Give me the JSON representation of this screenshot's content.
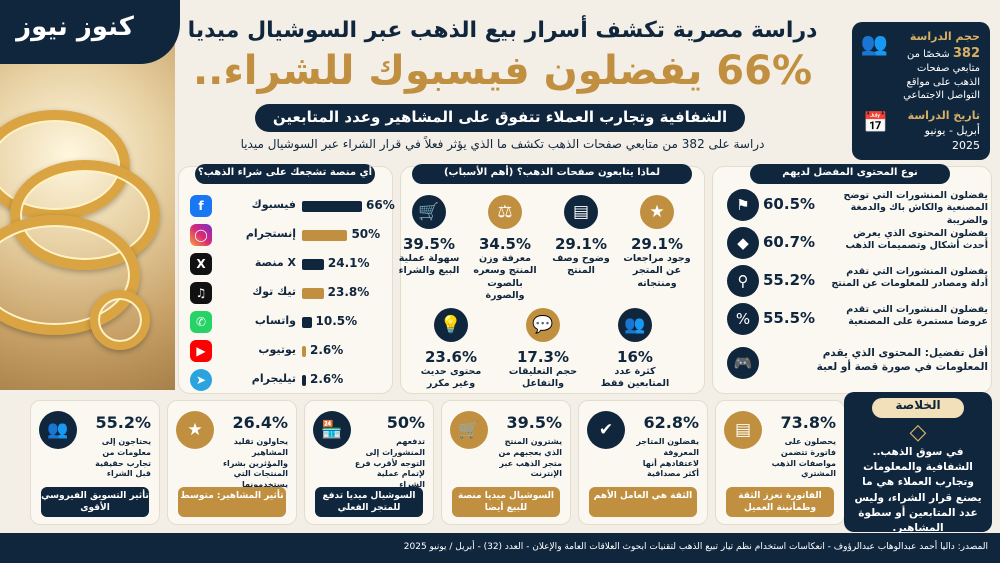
{
  "brand": {
    "logo": "كنوز نيوز"
  },
  "header": {
    "title": "دراسة مصرية تكشف أسرار بيع الذهب عبر السوشيال ميديا",
    "headline": "66% يفضلون فيسبوك للشراء..",
    "subtitle": "الشفافية وتجارب العملاء تتفوق على المشاهير وعدد المتابعين",
    "description": "دراسة على 382 من متابعي صفحات الذهب تكشف ما الذي يؤثر فعلاً في قرار الشراء عبر السوشيال ميديا"
  },
  "study": {
    "size_label": "حجم الدراسة",
    "size_num": "382",
    "size_text": "شخصًا من متابعي صفحات الذهب على مواقع التواصل الاجتماعي",
    "date_label": "تاريخ الدراسة",
    "date_value": "أبريل - يونيو 2025"
  },
  "platforms": {
    "title": "أي منصة تشجعك على شراء الذهب؟",
    "items": [
      {
        "name": "فيسبوك",
        "value": "66%",
        "pct": 66,
        "color": "#10263d",
        "icon": "facebook-icon"
      },
      {
        "name": "إنستجرام",
        "value": "50%",
        "pct": 50,
        "color": "#c09040",
        "icon": "instagram-icon"
      },
      {
        "name": "منصة X",
        "value": "24.1%",
        "pct": 24.1,
        "color": "#10263d",
        "icon": "x-icon"
      },
      {
        "name": "تيك توك",
        "value": "23.8%",
        "pct": 23.8,
        "color": "#c09040",
        "icon": "tiktok-icon"
      },
      {
        "name": "واتساب",
        "value": "10.5%",
        "pct": 10.5,
        "color": "#10263d",
        "icon": "whatsapp-icon"
      },
      {
        "name": "يوتيوب",
        "value": "2.6%",
        "pct": 2.6,
        "color": "#c09040",
        "icon": "youtube-icon"
      },
      {
        "name": "تيليجرام",
        "value": "2.6%",
        "pct": 2.6,
        "color": "#10263d",
        "icon": "telegram-icon"
      }
    ]
  },
  "reasons": {
    "title": "لماذا يتابعون صفحات الذهب؟ (أهم الأسباب)",
    "items": [
      {
        "value": "29.1%",
        "label": "وجود مراجعات عن المتجر ومنتجاته",
        "icon": "star-review-icon"
      },
      {
        "value": "29.1%",
        "label": "وضوح وصف المنتج",
        "icon": "document-icon"
      },
      {
        "value": "34.5%",
        "label": "معرفة وزن المنتج وسعره بالصوت والصورة",
        "icon": "scale-icon"
      },
      {
        "value": "39.5%",
        "label": "سهولة عملية البيع والشراء",
        "icon": "cart-icon"
      },
      {
        "value": "16%",
        "label": "كثرة عدد المتابعين فقط",
        "icon": "people-icon"
      },
      {
        "value": "17.3%",
        "label": "حجم التعليقات والتفاعل",
        "icon": "comment-icon"
      },
      {
        "value": "23.6%",
        "label": "محتوى حديث وغير مكرر",
        "icon": "lightbulb-icon"
      }
    ]
  },
  "content": {
    "title": "نوع المحتوى المفضل لديهم",
    "items": [
      {
        "value": "60.5%",
        "label": "يفضلون المنشورات التي توضح المصنعية والكاش باك والدمغة والضريبة",
        "icon": "tag-icon"
      },
      {
        "value": "60.7%",
        "label": "يفضلون المحتوى الذي يعرض أحدث أشكال وتصميمات الذهب",
        "icon": "diamond-icon"
      },
      {
        "value": "55.2%",
        "label": "يفضلون المنشورات التي تقدم أدلة ومصادر للمعلومات عن المنتج",
        "icon": "search-doc-icon"
      },
      {
        "value": "55.5%",
        "label": "يفضلون المنشورات التي تقدم عروضا مستمرة على المصنعية",
        "icon": "percent-icon"
      }
    ],
    "least": "أقل تفضيل: المحتوى الذي يقدم المعلومات في صورة قصة أو لعبة",
    "least_icon": "gamepad-icon"
  },
  "cards": [
    {
      "value": "73.8%",
      "label": "يحصلون على فاتورة تتضمن مواصفات الذهب المشتري",
      "tag": "الفاتورة تعزز الثقة وطمأنينة العميل",
      "icon": "invoice-icon"
    },
    {
      "value": "62.8%",
      "label": "يفضلون المتاجر المعروفة لاعتقادهم أنها أكثر مصداقية",
      "tag": "الثقة هي العامل الأهم",
      "icon": "shield-check-icon"
    },
    {
      "value": "39.5%",
      "label": "يشترون المنتج الذي يعجبهم من متجر الذهب عبر الإنترنت",
      "tag": "السوشيال ميديا منصة للبيع أيضا",
      "icon": "cart-icon"
    },
    {
      "value": "50%",
      "label": "تدفعهم المنشورات إلى التوجه لأقرب فرع لإتمام عملية الشراء",
      "tag": "السوشيال ميديا تدفع للمتجر الفعلي",
      "icon": "store-icon"
    },
    {
      "value": "26.4%",
      "label": "يحاولون تقليد المشاهير والمؤثرين بشراء المنتجات التي يستخدمونها",
      "tag": "تأثير المشاهير: متوسط",
      "icon": "person-star-icon"
    },
    {
      "value": "55.2%",
      "label": "يحتاجون إلى معلومات من تجارب حقيقية قبل الشراء",
      "tag": "تأثير التسويق الفيروسي الأقوى",
      "icon": "group-icon"
    }
  ],
  "summary": {
    "title": "الخلاصة",
    "text": "في سوق الذهب.. الشفافية والمعلومات وتجارب العملاء هي ما يصنع قرار الشراء، وليس عدد المتابعين أو سطوة المشاهير."
  },
  "footer": {
    "text": "المصدر: داليا أحمد عبدالوهاب عبدالرؤوف - انعكاسات استخدام نظم تيار تبيع الذهب لتقنيات ابحوث العلاقات العامة والإعلان - العدد (32) - أبريل / يونيو 2025"
  }
}
